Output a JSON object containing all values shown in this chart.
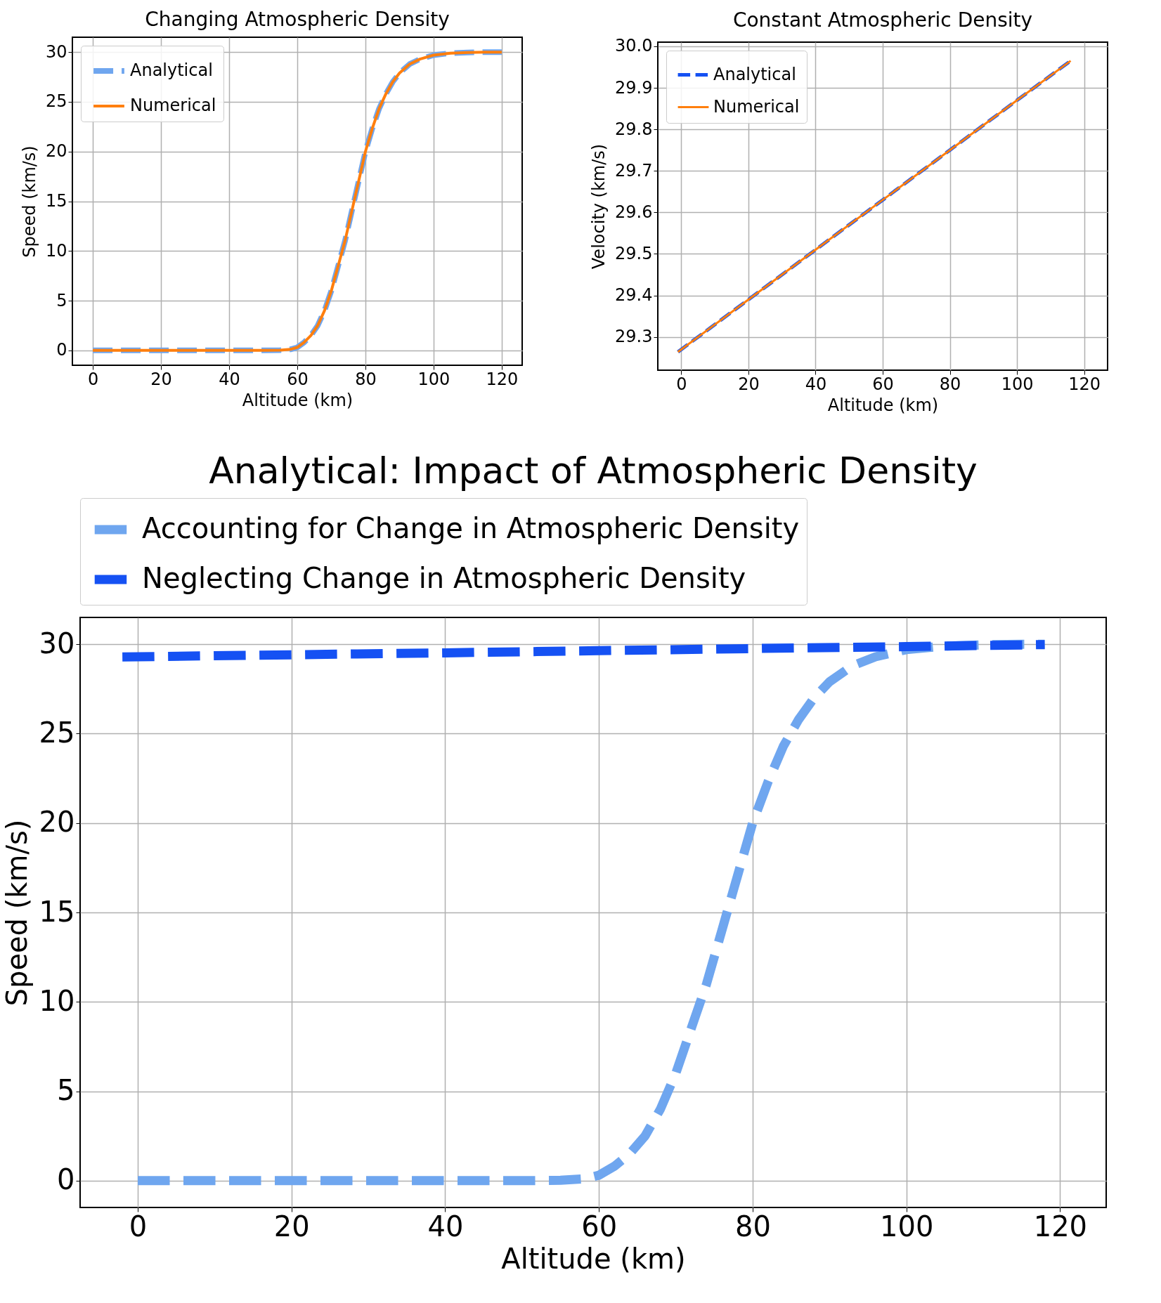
{
  "chart_data": [
    {
      "type": "line",
      "title": "Changing Atmospheric Density",
      "xlabel": "Altitude (km)",
      "ylabel": "Speed (km/s)",
      "xlim": [
        -6,
        126
      ],
      "ylim": [
        -1.5,
        31.5
      ],
      "xticks": [
        0,
        20,
        40,
        60,
        80,
        100,
        120
      ],
      "yticks": [
        0,
        5,
        10,
        15,
        20,
        25,
        30
      ],
      "grid": true,
      "legend": "top left",
      "x": [
        0,
        10,
        20,
        30,
        40,
        50,
        55,
        58,
        60,
        62,
        64,
        66,
        68,
        70,
        72,
        74,
        76,
        78,
        80,
        82,
        84,
        86,
        88,
        90,
        93,
        96,
        100,
        105,
        110,
        115,
        120
      ],
      "series": [
        {
          "name": "Analytical",
          "color": "#6fa6ef",
          "line_style": "dashed",
          "values": [
            0,
            0,
            0,
            0,
            0,
            0,
            0.02,
            0.1,
            0.3,
            0.8,
            1.5,
            2.5,
            4,
            6,
            8.5,
            11,
            14,
            17,
            20,
            22.3,
            24.3,
            25.8,
            27,
            27.9,
            28.8,
            29.3,
            29.7,
            29.9,
            29.97,
            30,
            30
          ]
        },
        {
          "name": "Numerical",
          "color": "#ff7f0e",
          "line_style": "solid",
          "values": [
            0,
            0,
            0,
            0,
            0,
            0,
            0.02,
            0.1,
            0.3,
            0.8,
            1.5,
            2.5,
            4,
            6,
            8.5,
            11,
            14,
            17,
            20,
            22.3,
            24.3,
            25.8,
            27,
            27.9,
            28.8,
            29.3,
            29.7,
            29.9,
            29.97,
            30,
            30
          ]
        }
      ]
    },
    {
      "type": "line",
      "title": "Constant Atmospheric Density",
      "xlabel": "Altitude (km)",
      "ylabel": "Velocity (km/s)",
      "xlim": [
        -7,
        127
      ],
      "ylim": [
        29.22,
        30.01
      ],
      "xticks": [
        0,
        20,
        40,
        60,
        80,
        100,
        120
      ],
      "yticks": [
        29.3,
        29.4,
        29.5,
        29.6,
        29.7,
        29.8,
        29.9,
        {
          "value": 30,
          "label": "30.0"
        }
      ],
      "grid": true,
      "legend": "top left",
      "x": [
        -1,
        0,
        20,
        40,
        60,
        80,
        100,
        116
      ],
      "series": [
        {
          "name": "Analytical",
          "color": "#1551f3",
          "line_style": "dashed",
          "values": [
            29.264,
            29.27,
            29.39,
            29.51,
            29.63,
            29.75,
            29.87,
            29.965
          ]
        },
        {
          "name": "Numerical",
          "color": "#ff7f0e",
          "line_style": "solid",
          "values": [
            29.264,
            29.27,
            29.39,
            29.51,
            29.63,
            29.75,
            29.87,
            29.965
          ]
        }
      ]
    },
    {
      "type": "line",
      "title": "Analytical: Impact of Atmospheric Density",
      "xlabel": "Altitude (km)",
      "ylabel": "Speed (km/s)",
      "xlim": [
        -7.5,
        126
      ],
      "ylim": [
        -1.5,
        31.5
      ],
      "xticks": [
        0,
        20,
        40,
        60,
        80,
        100,
        120
      ],
      "yticks": [
        0,
        5,
        10,
        15,
        20,
        25,
        30
      ],
      "grid": true,
      "legend": "top",
      "series": [
        {
          "name": "Accounting for Change in Atmospheric Density",
          "color": "#6fa6ef",
          "line_style": "dashed",
          "x": [
            0,
            10,
            20,
            30,
            40,
            50,
            55,
            58,
            60,
            62,
            64,
            66,
            68,
            70,
            72,
            74,
            76,
            78,
            80,
            82,
            84,
            86,
            88,
            90,
            93,
            96,
            100,
            105,
            110,
            115,
            118
          ],
          "values": [
            0,
            0,
            0,
            0,
            0,
            0,
            0.02,
            0.1,
            0.3,
            0.8,
            1.5,
            2.5,
            4,
            6,
            8.5,
            11,
            14,
            17,
            20,
            22.3,
            24.3,
            25.8,
            27,
            27.9,
            28.8,
            29.3,
            29.7,
            29.9,
            29.97,
            30,
            30
          ]
        },
        {
          "name": "Neglecting Change in Atmospheric Density",
          "color": "#1551f3",
          "line_style": "dashed",
          "x": [
            -2,
            0,
            20,
            40,
            60,
            80,
            100,
            118
          ],
          "values": [
            29.29,
            29.3,
            29.41,
            29.52,
            29.64,
            29.76,
            29.87,
            29.98
          ]
        }
      ]
    }
  ]
}
